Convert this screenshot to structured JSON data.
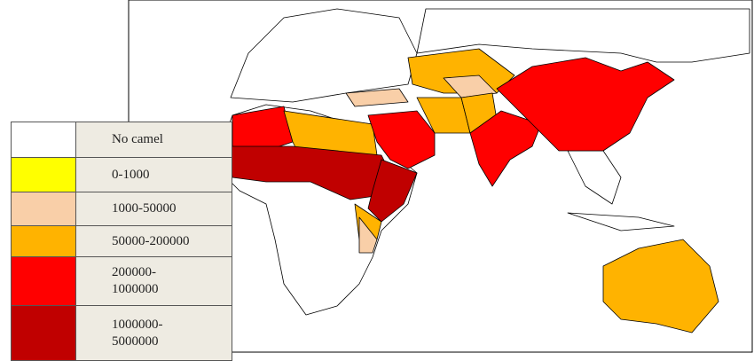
{
  "legend": {
    "items": [
      {
        "label": "No camel",
        "color": "#ffffff"
      },
      {
        "label": "0-1000",
        "color": "#ffff00"
      },
      {
        "label": "1000-50000",
        "color": "#f9cfa8"
      },
      {
        "label": "50000-200000",
        "color": "#ffb300"
      },
      {
        "label": "200000-\n1000000",
        "color": "#ff0000"
      },
      {
        "label": "1000000-\n5000000",
        "color": "#c00000"
      }
    ]
  }
}
